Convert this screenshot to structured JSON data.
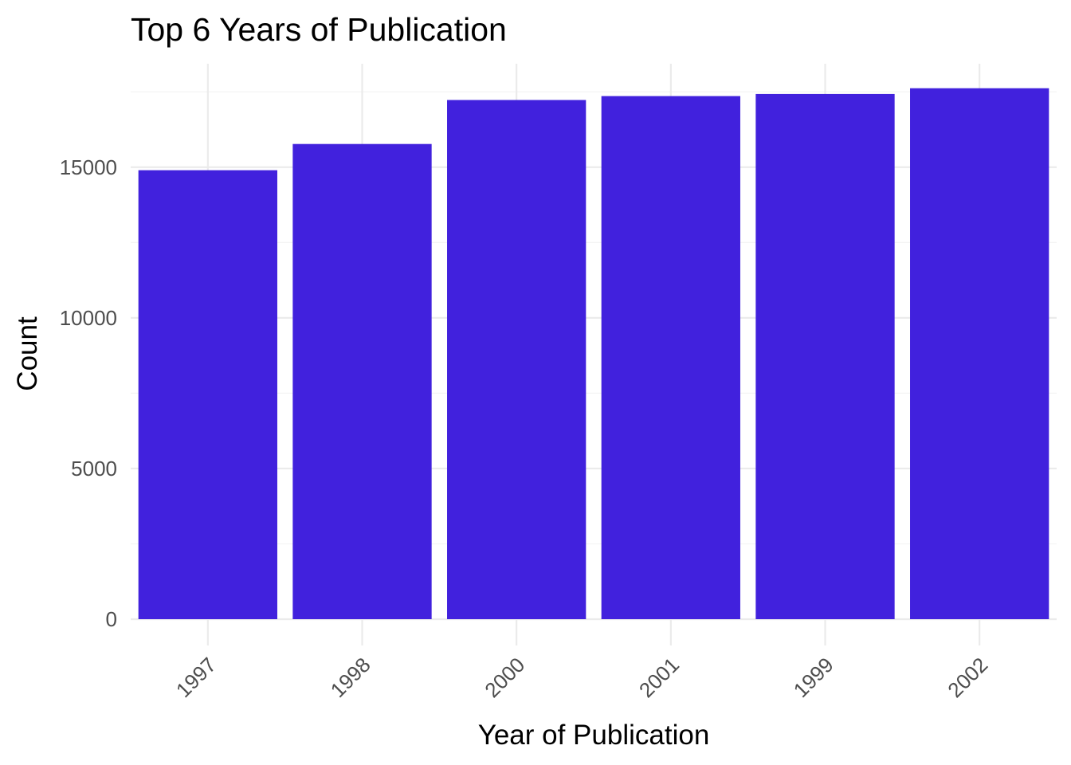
{
  "chart_data": {
    "type": "bar",
    "title": "Top 6 Years of Publication",
    "xlabel": "Year of Publication",
    "ylabel": "Count",
    "categories": [
      "1997",
      "1998",
      "2000",
      "2001",
      "1999",
      "2002"
    ],
    "values": [
      14900,
      15770,
      17230,
      17360,
      17430,
      17620
    ],
    "ylim": [
      0,
      18000
    ],
    "yticks": [
      0,
      5000,
      10000,
      15000
    ],
    "ytick_labels": [
      "0",
      "5000",
      "10000",
      "15000"
    ],
    "bar_color": "#4121DD",
    "grid": true,
    "legend": "none"
  }
}
